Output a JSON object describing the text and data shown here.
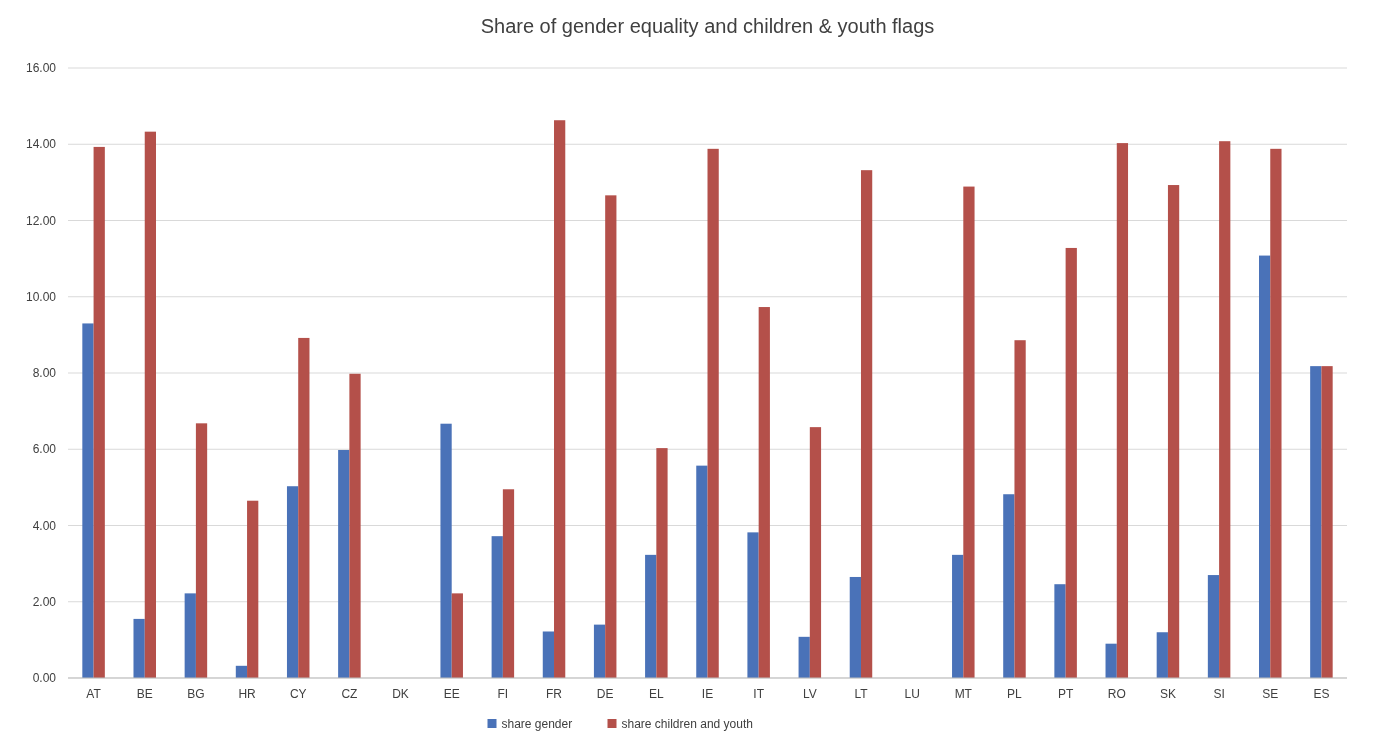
{
  "chart_data": {
    "type": "bar",
    "title": "Share of gender equality and children & youth flags",
    "categories": [
      "AT",
      "BE",
      "BG",
      "HR",
      "CY",
      "CZ",
      "DK",
      "EE",
      "FI",
      "FR",
      "DE",
      "EL",
      "IE",
      "IT",
      "LV",
      "LT",
      "LU",
      "MT",
      "PL",
      "PT",
      "RO",
      "SK",
      "SI",
      "SE",
      "ES"
    ],
    "series": [
      {
        "name": "share gender",
        "color": "#4a72b8",
        "values": [
          9.3,
          1.55,
          2.22,
          0.32,
          5.03,
          5.98,
          0,
          6.67,
          3.72,
          1.22,
          1.4,
          3.23,
          5.57,
          3.82,
          1.08,
          2.65,
          0,
          3.23,
          4.82,
          2.46,
          0.9,
          1.2,
          2.7,
          11.08,
          8.18
        ]
      },
      {
        "name": "share children and youth",
        "color": "#b4504a",
        "values": [
          13.93,
          14.33,
          6.68,
          4.65,
          8.92,
          7.98,
          0,
          2.22,
          4.95,
          14.63,
          12.66,
          6.03,
          13.88,
          9.73,
          6.58,
          13.32,
          0,
          12.89,
          8.86,
          11.28,
          14.03,
          12.93,
          14.08,
          13.88,
          8.18
        ]
      }
    ],
    "ylim": [
      0,
      16
    ],
    "yticks": [
      {
        "value": 0,
        "label": "0.00"
      },
      {
        "value": 2,
        "label": "2.00"
      },
      {
        "value": 4,
        "label": "4.00"
      },
      {
        "value": 6,
        "label": "6.00"
      },
      {
        "value": 8,
        "label": "8.00"
      },
      {
        "value": 10,
        "label": "10.00"
      },
      {
        "value": 12,
        "label": "12.00"
      },
      {
        "value": 14,
        "label": "14.00"
      },
      {
        "value": 16,
        "label": "16.00"
      }
    ],
    "grid": "y",
    "legend": "bottom"
  }
}
